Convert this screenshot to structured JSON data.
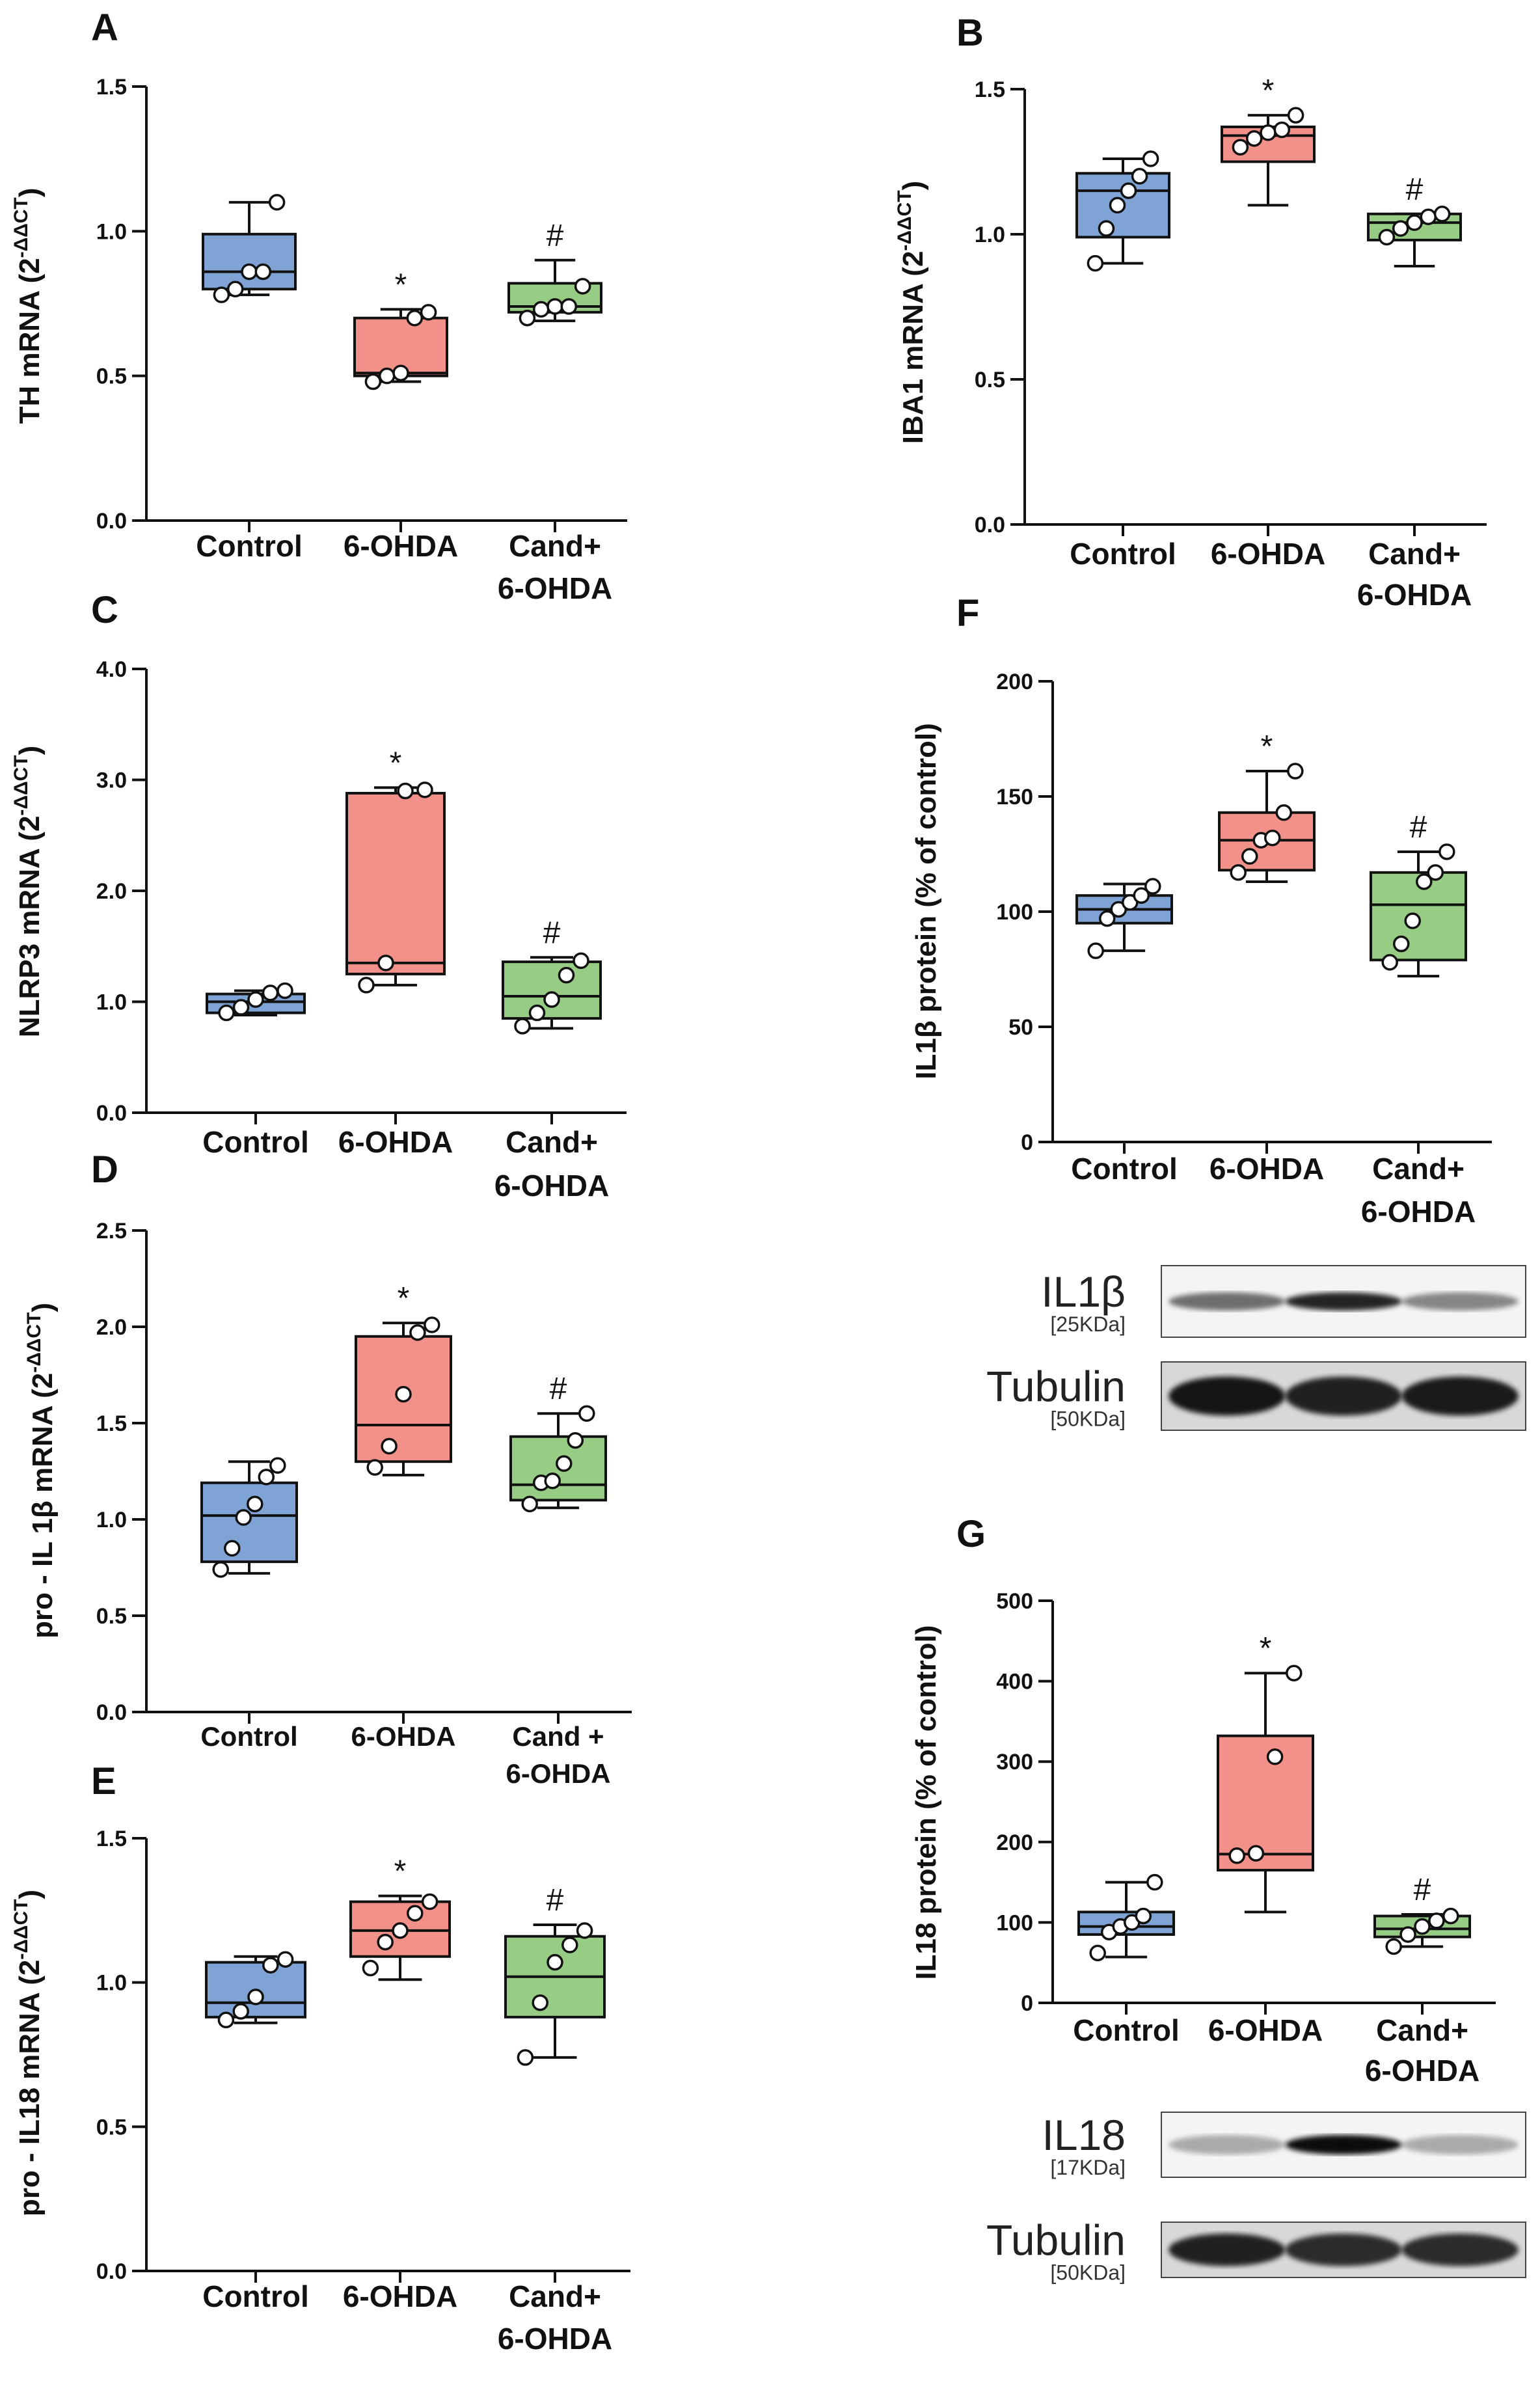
{
  "colors": {
    "control": "#7fa3d4",
    "ohda": "#f2908a",
    "cand": "#96cc84",
    "axis": "#111111"
  },
  "chart_data": [
    {
      "panel": "A",
      "type": "box",
      "ylabel": "TH mRNA (2",
      "ylabel_sup": "-ΔΔCT",
      "ylabel_close": ")",
      "ylim": [
        0,
        1.5
      ],
      "yticks": [
        "0.0",
        "0.5",
        "1.0",
        "1.5"
      ],
      "ytick_values": [
        0,
        0.5,
        1.0,
        1.5
      ],
      "categories": [
        "Control",
        "6-OHDA",
        "Cand+|6-OHDA"
      ],
      "boxes": [
        {
          "min": 0.78,
          "q1": 0.8,
          "median": 0.86,
          "q3": 0.99,
          "max": 1.1,
          "points": [
            0.78,
            0.8,
            0.86,
            0.86,
            1.1
          ]
        },
        {
          "min": 0.48,
          "q1": 0.5,
          "median": 0.51,
          "q3": 0.7,
          "max": 0.73,
          "points": [
            0.48,
            0.5,
            0.51,
            0.7,
            0.72
          ]
        },
        {
          "min": 0.69,
          "q1": 0.72,
          "median": 0.74,
          "q3": 0.82,
          "max": 0.9,
          "points": [
            0.7,
            0.73,
            0.74,
            0.74,
            0.81
          ]
        }
      ],
      "annotations": [
        "",
        "*",
        "#"
      ]
    },
    {
      "panel": "B",
      "type": "box",
      "ylabel": "IBA1 mRNA (2",
      "ylabel_sup": "-ΔΔCT",
      "ylabel_close": ")",
      "ylim": [
        0,
        1.5
      ],
      "yticks": [
        "0.0",
        "0.5",
        "1.0",
        "1.5"
      ],
      "ytick_values": [
        0,
        0.5,
        1.0,
        1.5
      ],
      "categories": [
        "Control",
        "6-OHDA",
        "Cand+|6-OHDA"
      ],
      "boxes": [
        {
          "min": 0.9,
          "q1": 0.99,
          "median": 1.15,
          "q3": 1.21,
          "max": 1.26,
          "points": [
            0.9,
            1.02,
            1.1,
            1.15,
            1.2,
            1.26
          ]
        },
        {
          "min": 1.1,
          "q1": 1.25,
          "median": 1.34,
          "q3": 1.37,
          "max": 1.41,
          "points": [
            1.3,
            1.33,
            1.35,
            1.36,
            1.41
          ]
        },
        {
          "min": 0.89,
          "q1": 0.98,
          "median": 1.04,
          "q3": 1.07,
          "max": 1.07,
          "points": [
            0.99,
            1.02,
            1.04,
            1.06,
            1.07
          ]
        }
      ],
      "annotations": [
        "",
        "*",
        "#"
      ]
    },
    {
      "panel": "C",
      "type": "box",
      "ylabel": "NLRP3 mRNA (2",
      "ylabel_sup": "-ΔΔCT",
      "ylabel_close": ")",
      "ylim": [
        0,
        4.0
      ],
      "yticks": [
        "0.0",
        "1.0",
        "2.0",
        "3.0",
        "4.0"
      ],
      "ytick_values": [
        0,
        1.0,
        2.0,
        3.0,
        4.0
      ],
      "categories": [
        "Control",
        "6-OHDA",
        "Cand+|6-OHDA"
      ],
      "boxes": [
        {
          "min": 0.88,
          "q1": 0.9,
          "median": 1.0,
          "q3": 1.07,
          "max": 1.1,
          "points": [
            0.9,
            0.95,
            1.02,
            1.08,
            1.1
          ]
        },
        {
          "min": 1.15,
          "q1": 1.25,
          "median": 1.35,
          "q3": 2.88,
          "max": 2.93,
          "points": [
            1.15,
            1.35,
            2.9,
            2.91
          ]
        },
        {
          "min": 0.76,
          "q1": 0.85,
          "median": 1.05,
          "q3": 1.36,
          "max": 1.4,
          "points": [
            0.78,
            0.9,
            1.02,
            1.24,
            1.37
          ]
        }
      ],
      "annotations": [
        "",
        "*",
        "#"
      ]
    },
    {
      "panel": "D",
      "type": "box",
      "ylabel": "pro - IL 1β mRNA (2",
      "ylabel_sup": "-ΔΔCT",
      "ylabel_close": ")",
      "ylim": [
        0,
        2.5
      ],
      "yticks": [
        "0.0",
        "0.5",
        "1.0",
        "1.5",
        "2.0",
        "2.5"
      ],
      "ytick_values": [
        0,
        0.5,
        1.0,
        1.5,
        2.0,
        2.5
      ],
      "categories": [
        "Control",
        "6-OHDA",
        "Cand +|6-OHDA"
      ],
      "boxes": [
        {
          "min": 0.72,
          "q1": 0.78,
          "median": 1.02,
          "q3": 1.19,
          "max": 1.3,
          "points": [
            0.74,
            0.85,
            1.01,
            1.08,
            1.22,
            1.28
          ]
        },
        {
          "min": 1.23,
          "q1": 1.3,
          "median": 1.49,
          "q3": 1.95,
          "max": 2.02,
          "points": [
            1.27,
            1.38,
            1.65,
            1.97,
            2.01
          ]
        },
        {
          "min": 1.06,
          "q1": 1.1,
          "median": 1.18,
          "q3": 1.43,
          "max": 1.55,
          "points": [
            1.08,
            1.19,
            1.2,
            1.29,
            1.41,
            1.55
          ]
        }
      ],
      "annotations": [
        "",
        "*",
        "#"
      ]
    },
    {
      "panel": "E",
      "type": "box",
      "ylabel": "pro - IL18 mRNA (2",
      "ylabel_sup": "-ΔΔCT",
      "ylabel_close": ")",
      "ylim": [
        0,
        1.5
      ],
      "yticks": [
        "0.0",
        "0.5",
        "1.0",
        "1.5"
      ],
      "ytick_values": [
        0,
        0.5,
        1.0,
        1.5
      ],
      "categories": [
        "Control",
        "6-OHDA",
        "Cand+|6-OHDA"
      ],
      "boxes": [
        {
          "min": 0.86,
          "q1": 0.88,
          "median": 0.93,
          "q3": 1.07,
          "max": 1.09,
          "points": [
            0.87,
            0.9,
            0.95,
            1.06,
            1.08
          ]
        },
        {
          "min": 1.01,
          "q1": 1.09,
          "median": 1.18,
          "q3": 1.28,
          "max": 1.3,
          "points": [
            1.05,
            1.14,
            1.18,
            1.24,
            1.28
          ]
        },
        {
          "min": 0.74,
          "q1": 0.88,
          "median": 1.02,
          "q3": 1.16,
          "max": 1.2,
          "points": [
            0.74,
            0.93,
            1.07,
            1.13,
            1.18
          ]
        }
      ],
      "annotations": [
        "",
        "*",
        "#"
      ]
    },
    {
      "panel": "F",
      "type": "box",
      "ylabel": "IL1β protein (% of control)",
      "ylabel_sup": "",
      "ylabel_close": "",
      "ylim": [
        0,
        200
      ],
      "yticks": [
        "0",
        "50",
        "100",
        "150",
        "200"
      ],
      "ytick_values": [
        0,
        50,
        100,
        150,
        200
      ],
      "categories": [
        "Control",
        "6-OHDA",
        "Cand+|6-OHDA"
      ],
      "boxes": [
        {
          "min": 83,
          "q1": 95,
          "median": 101,
          "q3": 107,
          "max": 112,
          "points": [
            83,
            97,
            101,
            104,
            107,
            111
          ]
        },
        {
          "min": 113,
          "q1": 118,
          "median": 131,
          "q3": 143,
          "max": 161,
          "points": [
            117,
            124,
            131,
            132,
            143,
            161
          ]
        },
        {
          "min": 72,
          "q1": 79,
          "median": 103,
          "q3": 117,
          "max": 126,
          "points": [
            78,
            86,
            96,
            113,
            117,
            126
          ]
        }
      ],
      "annotations": [
        "",
        "*",
        "#"
      ],
      "blot": {
        "target": "IL1β",
        "target_kda": "[25KDa]",
        "loading": "Tubulin",
        "loading_kda": "[50KDa]"
      }
    },
    {
      "panel": "G",
      "type": "box",
      "ylabel": "IL18 protein (% of control)",
      "ylabel_sup": "",
      "ylabel_close": "",
      "ylim": [
        0,
        500
      ],
      "yticks": [
        "0",
        "100",
        "200",
        "300",
        "400",
        "500"
      ],
      "ytick_values": [
        0,
        100,
        200,
        300,
        400,
        500
      ],
      "categories": [
        "Control",
        "6-OHDA",
        "Cand+|6-OHDA"
      ],
      "boxes": [
        {
          "min": 57,
          "q1": 85,
          "median": 95,
          "q3": 113,
          "max": 150,
          "points": [
            62,
            88,
            95,
            100,
            108,
            150
          ]
        },
        {
          "min": 113,
          "q1": 165,
          "median": 185,
          "q3": 332,
          "max": 410,
          "points": [
            183,
            186,
            306,
            410
          ]
        },
        {
          "min": 70,
          "q1": 82,
          "median": 92,
          "q3": 108,
          "max": 110,
          "points": [
            70,
            85,
            95,
            102,
            108
          ]
        }
      ],
      "annotations": [
        "",
        "*",
        "#"
      ],
      "blot": {
        "target": "IL18",
        "target_kda": "[17KDa]",
        "loading": "Tubulin",
        "loading_kda": "[50KDa]"
      }
    }
  ]
}
